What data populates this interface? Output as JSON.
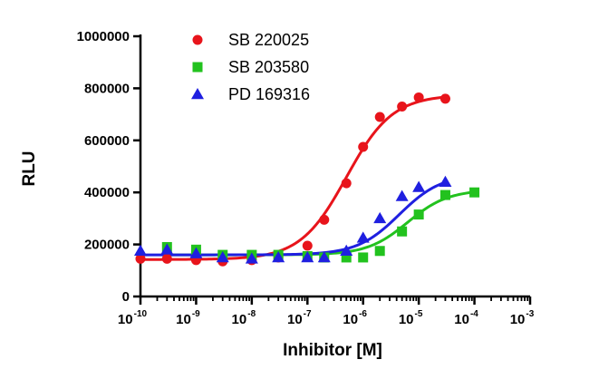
{
  "chart_data": {
    "type": "scatter",
    "title": "",
    "xlabel": "Inhibitor [M]",
    "ylabel": "RLU",
    "x_scale": "log10",
    "xlim": [
      1e-10,
      0.001
    ],
    "ylim": [
      0,
      1000000
    ],
    "x_ticks": [
      {
        "base": "10",
        "exp": "-10",
        "value": 1e-10
      },
      {
        "base": "10",
        "exp": "-9",
        "value": 1e-09
      },
      {
        "base": "10",
        "exp": "-8",
        "value": 1e-08
      },
      {
        "base": "10",
        "exp": "-7",
        "value": 1e-07
      },
      {
        "base": "10",
        "exp": "-6",
        "value": 1e-06
      },
      {
        "base": "10",
        "exp": "-5",
        "value": 1e-05
      },
      {
        "base": "10",
        "exp": "-4",
        "value": 0.0001
      },
      {
        "base": "10",
        "exp": "-3",
        "value": 0.001
      }
    ],
    "y_ticks": [
      {
        "label": "0",
        "value": 0
      },
      {
        "label": "200000",
        "value": 200000
      },
      {
        "label": "400000",
        "value": 400000
      },
      {
        "label": "600000",
        "value": 600000
      },
      {
        "label": "800000",
        "value": 800000
      },
      {
        "label": "1000000",
        "value": 1000000
      }
    ],
    "legend_position": "top-left",
    "grid": false,
    "series": [
      {
        "name": "SB 220025",
        "color": "#e8141b",
        "marker": "circle",
        "x": [
          1e-10,
          3e-10,
          1e-09,
          3e-09,
          1e-08,
          3e-08,
          1e-07,
          2e-07,
          5e-07,
          1e-06,
          2e-06,
          5e-06,
          1e-05,
          3e-05
        ],
        "y": [
          145000,
          145000,
          140000,
          135000,
          140000,
          150000,
          195000,
          295000,
          435000,
          575000,
          690000,
          730000,
          765000,
          760000
        ],
        "curve": {
          "bottom": 142000,
          "top": 775000,
          "logEC50": -6.3,
          "hill": 1.05
        }
      },
      {
        "name": "SB 203580",
        "color": "#22c21e",
        "marker": "square",
        "x": [
          3e-10,
          1e-09,
          3e-09,
          1e-08,
          3e-08,
          1e-07,
          2e-07,
          5e-07,
          1e-06,
          2e-06,
          5e-06,
          1e-05,
          3e-05,
          0.0001
        ],
        "y": [
          190000,
          180000,
          160000,
          160000,
          160000,
          155000,
          150000,
          150000,
          150000,
          175000,
          250000,
          315000,
          390000,
          400000
        ],
        "curve": {
          "bottom": 160000,
          "top": 410000,
          "logEC50": -5.2,
          "hill": 1.2
        }
      },
      {
        "name": "PD 169316",
        "color": "#1f1fe0",
        "marker": "triangle",
        "x": [
          1e-10,
          3e-10,
          1e-09,
          3e-09,
          1e-08,
          3e-08,
          1e-07,
          2e-07,
          5e-07,
          1e-06,
          2e-06,
          5e-06,
          1e-05,
          3e-05
        ],
        "y": [
          175000,
          180000,
          165000,
          150000,
          145000,
          150000,
          150000,
          150000,
          175000,
          225000,
          300000,
          385000,
          420000,
          440000
        ],
        "curve": {
          "bottom": 160000,
          "top": 470000,
          "logEC50": -5.35,
          "hill": 1.15
        }
      }
    ]
  }
}
